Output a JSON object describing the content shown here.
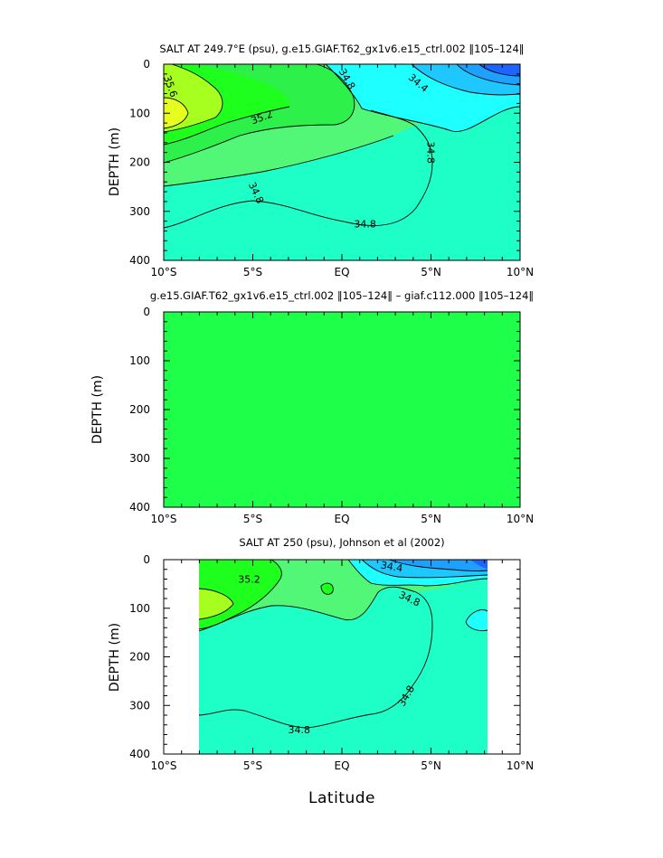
{
  "chart_data": [
    {
      "type": "heatmap",
      "title": "SALT AT 249.7°E (psu), g.e15.GIAF.T62_gx1v6.e15_ctrl.002 ‖105–124‖",
      "ylabel": "DEPTH (m)",
      "xlabel": "",
      "x_tick_labels": [
        "10°S",
        "5°S",
        "EQ",
        "5°N",
        "10°N"
      ],
      "x_ticks": [
        -10,
        -5,
        0,
        5,
        10
      ],
      "y_tick_labels": [
        "0",
        "100",
        "200",
        "300",
        "400"
      ],
      "y_ticks": [
        0,
        100,
        200,
        300,
        400
      ],
      "xlim": [
        -10,
        10
      ],
      "ylim": [
        400,
        0
      ],
      "contour_labels": [
        {
          "text": "35.6",
          "x": -9.6,
          "y": 45,
          "angle": 70
        },
        {
          "text": "35.2",
          "x": -4.5,
          "y": 108,
          "angle": -20
        },
        {
          "text": "34.8",
          "x": 0.3,
          "y": 30,
          "angle": 60
        },
        {
          "text": "34.4",
          "x": 4.3,
          "y": 38,
          "angle": 40
        },
        {
          "text": "34.8",
          "x": 5.0,
          "y": 180,
          "angle": 90
        },
        {
          "text": "34.8",
          "x": -4.8,
          "y": 262,
          "angle": 65
        },
        {
          "text": "34.8",
          "x": 1.3,
          "y": 325,
          "angle": 0
        }
      ]
    },
    {
      "type": "heatmap",
      "title": "g.e15.GIAF.T62_gx1v6.e15_ctrl.002 ‖105–124‖ – giaf.c112.000 ‖105–124‖",
      "ylabel": "DEPTH (m)",
      "xlabel": "",
      "x_tick_labels": [
        "10°S",
        "5°S",
        "EQ",
        "5°N",
        "10°N"
      ],
      "x_ticks": [
        -10,
        -5,
        0,
        5,
        10
      ],
      "y_tick_labels": [
        "0",
        "100",
        "200",
        "300",
        "400"
      ],
      "y_ticks": [
        0,
        100,
        200,
        300,
        400
      ],
      "xlim": [
        -10,
        10
      ],
      "ylim": [
        400,
        0
      ],
      "contour_labels": []
    },
    {
      "type": "heatmap",
      "title": "SALT AT 250 (psu), Johnson et al (2002)",
      "ylabel": "DEPTH (m)",
      "xlabel": "Latitude",
      "x_tick_labels": [
        "10°S",
        "5°S",
        "EQ",
        "5°N",
        "10°N"
      ],
      "x_ticks": [
        -10,
        -5,
        0,
        5,
        10
      ],
      "y_tick_labels": [
        "0",
        "100",
        "200",
        "300",
        "400"
      ],
      "y_ticks": [
        0,
        100,
        200,
        300,
        400
      ],
      "xlim": [
        -10,
        10
      ],
      "ylim": [
        400,
        0
      ],
      "data_extent_x": [
        -8.0,
        8.2
      ],
      "contour_labels": [
        {
          "text": "35.2",
          "x": -5.2,
          "y": 40,
          "angle": 0
        },
        {
          "text": "34.4",
          "x": 2.8,
          "y": 14,
          "angle": 10
        },
        {
          "text": "34.8",
          "x": 3.8,
          "y": 80,
          "angle": 25
        },
        {
          "text": "34.8",
          "x": 3.6,
          "y": 280,
          "angle": -60
        },
        {
          "text": "34.8",
          "x": -2.4,
          "y": 350,
          "angle": 0
        }
      ]
    }
  ],
  "colors": {
    "yellow": "#e6ff1e",
    "yellow_green": "#a6ff1e",
    "green": "#1eff1e",
    "light_green": "#52f777",
    "cyan_green": "#1effc8",
    "cyan": "#1effff",
    "light_blue": "#1ec8ff",
    "blue": "#1ea0ff",
    "deep_blue": "#1e64ff"
  }
}
